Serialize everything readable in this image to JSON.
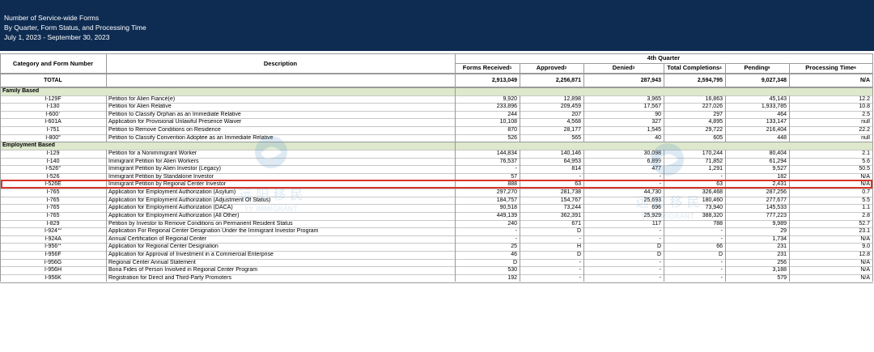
{
  "header": {
    "lines": [
      "Number of Service-wide Forms",
      "By Quarter, Form Status, and Processing Time",
      "July 1, 2023 - September 30, 2023"
    ]
  },
  "columns": {
    "category": "Category and Form Number",
    "description": "Description",
    "quarter": "4th Quarter",
    "metrics": [
      {
        "label": "Forms Received",
        "sup": "1"
      },
      {
        "label": "Approved",
        "sup": "2"
      },
      {
        "label": "Denied",
        "sup": "3"
      },
      {
        "label": "Total Completions",
        "sup": "4"
      },
      {
        "label": "Pending",
        "sup": "5"
      },
      {
        "label": "Processing Time",
        "sup": "6"
      }
    ]
  },
  "total": {
    "label": "TOTAL",
    "values": [
      "2,913,049",
      "2,256,871",
      "287,943",
      "2,594,795",
      "9,027,348",
      "N/A"
    ]
  },
  "rows": [
    {
      "section": "Family Based"
    },
    {
      "form": "I-129F",
      "desc": "Petition for Alien Fiancé(e)",
      "values": [
        "9,920",
        "12,898",
        "3,965",
        "16,863",
        "45,143",
        "12.2"
      ]
    },
    {
      "form": "I-130",
      "desc": "Petition for Alien Relative",
      "values": [
        "233,896",
        "209,459",
        "17,567",
        "227,026",
        "1,933,785",
        "10.8"
      ]
    },
    {
      "form": "I-600",
      "sup": "7",
      "desc": "Petition to Classify Orphan as an Immediate Relative",
      "values": [
        "244",
        "207",
        "90",
        "297",
        "464",
        "2.5"
      ]
    },
    {
      "form": "I-601A",
      "desc": "Application for Provisional Unlawful Presence Waiver",
      "values": [
        "10,108",
        "4,568",
        "327",
        "4,895",
        "133,147",
        "null"
      ]
    },
    {
      "form": "I-751",
      "desc": "Petition to Remove Conditions on Residence",
      "values": [
        "870",
        "28,177",
        "1,545",
        "29,722",
        "216,404",
        "22.2"
      ]
    },
    {
      "form": "I-800",
      "sup": "8",
      "desc": "Petition to Classify Convention Adoptee as an Immediate Relative",
      "values": [
        "526",
        "565",
        "40",
        "605",
        "448",
        "null"
      ]
    },
    {
      "section": "Employment Based"
    },
    {
      "form": "I-129",
      "desc": "Petition for a Nonimmigrant Worker",
      "values": [
        "144,834",
        "140,146",
        "30,098",
        "170,244",
        "80,404",
        "2.1"
      ]
    },
    {
      "form": "I-140",
      "desc": "Immigrant Petition for Alien Workers",
      "values": [
        "76,537",
        "64,953",
        "6,899",
        "71,852",
        "61,294",
        "5.6"
      ]
    },
    {
      "form": "I-526",
      "sup": "9",
      "desc": "Immigrant Petition by Alien Investor (Legacy)",
      "values": [
        "-",
        "814",
        "477",
        "1,291",
        "9,527",
        "50.5"
      ]
    },
    {
      "form": "I-526",
      "desc": "Immigrant Petition by Standalone Investor",
      "values": [
        "57",
        "-",
        "-",
        "-",
        "182",
        "N/A"
      ]
    },
    {
      "form": "I-526E",
      "desc": "Immigrant Petition by Regional Center Investor",
      "values": [
        "888",
        "63",
        "-",
        "63",
        "2,431",
        "N/A"
      ],
      "highlight": true
    },
    {
      "form": "I-765",
      "desc": "Application for Employment Authorization (Asylum)",
      "values": [
        "297,270",
        "281,738",
        "44,730",
        "326,468",
        "287,256",
        "0.7"
      ]
    },
    {
      "form": "I-765",
      "desc": "Application for Employment Authorization (Adjustment Of Status)",
      "values": [
        "184,757",
        "154,767",
        "25,693",
        "180,460",
        "277,677",
        "5.5"
      ]
    },
    {
      "form": "I-765",
      "desc": "Application for Employment Authorization (DACA)",
      "values": [
        "90,518",
        "73,244",
        "696",
        "73,940",
        "145,533",
        "1.1"
      ]
    },
    {
      "form": "I-765",
      "desc": "Application for Employment Authorization (All Other)",
      "values": [
        "449,139",
        "362,391",
        "25,929",
        "388,320",
        "777,223",
        "2.8"
      ]
    },
    {
      "form": "I-829",
      "desc": "Petition by Investor to Remove Conditions on Permanent Resident Status",
      "values": [
        "240",
        "671",
        "117",
        "788",
        "9,989",
        "52.7"
      ]
    },
    {
      "form": "I-924",
      "sup": "10",
      "desc": "Application For Regional Center Designation Under the Immigrant Investor Program",
      "values": [
        "-",
        "D",
        "-",
        "-",
        "29",
        "23.1"
      ]
    },
    {
      "form": "I-924A",
      "desc": "Annual Certification of Regional Center",
      "values": [
        "-",
        "-",
        "-",
        "-",
        "1,734",
        "N/A"
      ]
    },
    {
      "form": "I-956",
      "sup": "11",
      "desc": "Application for Regional Center Designation",
      "values": [
        "25",
        "H",
        "D",
        "66",
        "231",
        "9.0"
      ]
    },
    {
      "form": "I-956F",
      "desc": "Application for Approval of Investment in a Commercial Enterprise",
      "values": [
        "46",
        "D",
        "D",
        "D",
        "231",
        "12.8"
      ]
    },
    {
      "form": "I-956G",
      "desc": "Regional Center Annual Statement",
      "values": [
        "D",
        "-",
        "-",
        "-",
        "256",
        "N/A"
      ]
    },
    {
      "form": "I-956H",
      "desc": "Bona Fides of Person Involved in Regional Center Program",
      "values": [
        "530",
        "-",
        "-",
        "-",
        "3,188",
        "N/A"
      ]
    },
    {
      "form": "I-956K",
      "desc": "Registration for Direct and Third-Party Promoters",
      "values": [
        "192",
        "-",
        "-",
        "-",
        "579",
        "N/A"
      ]
    }
  ],
  "watermark": {
    "text_cn": "远 阳 移 民",
    "text_en": "YY IMMIGRANT"
  },
  "colors": {
    "header_bg": "#0e2c52",
    "section_bg": "#dde8cc",
    "highlight_border": "#d9342b",
    "grid_line": "#9a9a9a"
  }
}
